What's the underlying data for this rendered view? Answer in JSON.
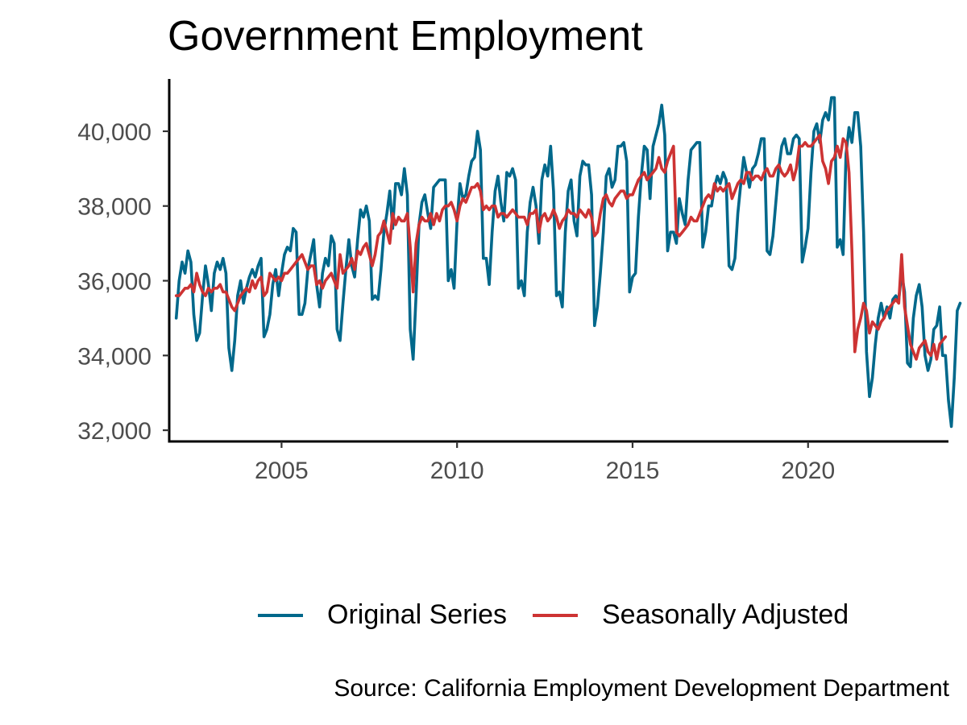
{
  "chart_data": {
    "type": "line",
    "title": "Government Employment",
    "xlabel": "",
    "ylabel": "",
    "caption": "Source: California Employment Development Department",
    "xlim": [
      2001.8,
      2024.0
    ],
    "ylim": [
      31700,
      41400
    ],
    "x_ticks": [
      2005,
      2010,
      2015,
      2020
    ],
    "x_tick_labels": [
      "2005",
      "2010",
      "2015",
      "2020"
    ],
    "y_ticks": [
      32000,
      34000,
      36000,
      38000,
      40000
    ],
    "y_tick_labels": [
      "32,000",
      "34,000",
      "36,000",
      "38,000",
      "40,000"
    ],
    "grid": false,
    "legend_position": "bottom",
    "x_start": 2002.0,
    "x_step": 0.08333,
    "series": [
      {
        "name": "Original Series",
        "color": "#00688b",
        "values": [
          35000,
          36000,
          36500,
          36200,
          36800,
          36500,
          35100,
          34400,
          34600,
          35600,
          36400,
          35900,
          35200,
          36200,
          36500,
          36300,
          36600,
          36200,
          34200,
          33600,
          34400,
          35600,
          36000,
          35400,
          35800,
          36100,
          36300,
          36100,
          36400,
          36600,
          34500,
          34700,
          35100,
          35900,
          36300,
          35600,
          36200,
          36700,
          36900,
          36800,
          37400,
          37300,
          35100,
          35100,
          35400,
          36300,
          36700,
          37100,
          35900,
          35300,
          36200,
          36600,
          36400,
          37200,
          37000,
          34700,
          34400,
          35400,
          36300,
          37100,
          36400,
          36100,
          37100,
          37900,
          37700,
          38000,
          37600,
          35500,
          35600,
          35500,
          36300,
          37300,
          37800,
          38400,
          37400,
          38600,
          38600,
          38300,
          39000,
          38300,
          34700,
          33900,
          35600,
          37500,
          38100,
          38300,
          37800,
          37400,
          38500,
          38600,
          38700,
          38700,
          38700,
          36000,
          36300,
          35800,
          37600,
          38600,
          38200,
          38300,
          38800,
          39200,
          39300,
          40000,
          39500,
          36600,
          36600,
          35900,
          37300,
          38400,
          38800,
          38100,
          37600,
          38900,
          38800,
          39000,
          38700,
          35800,
          36000,
          35600,
          37300,
          38100,
          38500,
          38000,
          37000,
          38700,
          39100,
          38800,
          39600,
          38400,
          35600,
          35700,
          35300,
          37300,
          38400,
          38700,
          37600,
          37200,
          38800,
          39200,
          39100,
          39100,
          38300,
          34800,
          35300,
          36200,
          37300,
          38800,
          39000,
          38500,
          38700,
          39600,
          39600,
          39700,
          39200,
          35700,
          36100,
          36200,
          37700,
          38800,
          39600,
          39500,
          38200,
          39600,
          39900,
          40200,
          40700,
          39900,
          36800,
          37300,
          37300,
          37000,
          38200,
          37800,
          37500,
          38700,
          39500,
          39600,
          39700,
          39700,
          36900,
          37300,
          38000,
          38000,
          38500,
          38800,
          38600,
          38900,
          38700,
          36400,
          36300,
          36600,
          37800,
          38600,
          39300,
          38900,
          38500,
          39000,
          39100,
          39400,
          39800,
          39800,
          36800,
          36700,
          37200,
          38100,
          39000,
          39600,
          39800,
          39400,
          39400,
          39800,
          39900,
          39800,
          36500,
          36900,
          37400,
          38900,
          40000,
          40200,
          39700,
          40300,
          40500,
          40300,
          40900,
          40900,
          36900,
          37100,
          36700,
          39400,
          40100,
          39700,
          40500,
          40500,
          39600,
          37300,
          34100,
          32900,
          33400,
          34300,
          35000,
          35400,
          35000,
          35300,
          35000,
          35500,
          35600,
          35500,
          36200,
          35700,
          33800,
          33700,
          35000,
          35600,
          35900,
          35300,
          34000,
          33600,
          33900,
          34700,
          34800,
          35300,
          34000,
          34000,
          32800,
          32100,
          33400,
          35200,
          35400
        ]
      },
      {
        "name": "Seasonally Adjusted",
        "color": "#cd3333",
        "values": [
          35600,
          35600,
          35700,
          35800,
          35800,
          35900,
          35700,
          36200,
          35900,
          35700,
          35600,
          35800,
          35700,
          35800,
          35800,
          35900,
          35700,
          35700,
          35500,
          35300,
          35200,
          35400,
          35600,
          35700,
          35800,
          35700,
          36000,
          35800,
          36000,
          36100,
          35600,
          35700,
          36200,
          36100,
          36000,
          36100,
          36000,
          36200,
          36200,
          36300,
          36400,
          36500,
          36600,
          36700,
          36500,
          36300,
          36400,
          36400,
          35900,
          36000,
          35800,
          36000,
          36100,
          36200,
          36000,
          35800,
          36700,
          36200,
          36300,
          36400,
          36600,
          36300,
          36800,
          36700,
          36900,
          37000,
          36700,
          36400,
          36700,
          37200,
          37300,
          37600,
          37300,
          37000,
          37800,
          37500,
          37700,
          37600,
          37600,
          37800,
          36900,
          35700,
          37000,
          37500,
          37700,
          37600,
          37600,
          37800,
          37500,
          37800,
          37600,
          37900,
          38000,
          38000,
          38100,
          37900,
          37600,
          38000,
          38200,
          38100,
          38300,
          38500,
          38500,
          38600,
          38400,
          37900,
          38000,
          37900,
          38000,
          38000,
          37700,
          37800,
          37800,
          37700,
          37800,
          37900,
          37800,
          37700,
          37700,
          37700,
          37500,
          37800,
          37800,
          37900,
          37300,
          37700,
          37800,
          37600,
          37700,
          37900,
          37700,
          37400,
          37600,
          37700,
          37900,
          37800,
          37800,
          37700,
          37900,
          37800,
          37700,
          37900,
          37700,
          37200,
          37300,
          37800,
          38200,
          38300,
          38100,
          38000,
          38200,
          38300,
          38400,
          38400,
          38200,
          38300,
          38300,
          38500,
          38700,
          38800,
          38900,
          38700,
          38800,
          38900,
          39000,
          39300,
          39000,
          38900,
          39200,
          39400,
          39600,
          37300,
          37200,
          37300,
          37400,
          37500,
          37700,
          37600,
          37600,
          37800,
          38000,
          38200,
          38300,
          38200,
          38600,
          38400,
          38500,
          38400,
          38500,
          38600,
          38200,
          38400,
          38600,
          38700,
          38600,
          38900,
          38900,
          38700,
          38800,
          38800,
          38700,
          38900,
          39000,
          38800,
          38800,
          39000,
          39100,
          38900,
          38800,
          38900,
          39100,
          38700,
          39000,
          39600,
          39600,
          39700,
          39600,
          39600,
          39700,
          39800,
          39900,
          39200,
          39000,
          38600,
          39200,
          39300,
          39600,
          39300,
          39800,
          39700,
          38900,
          36800,
          34100,
          34700,
          35000,
          35400,
          35200,
          34600,
          34900,
          34800,
          34700,
          34900,
          35000,
          35200,
          35300,
          35400,
          35500,
          35400,
          36700,
          35300,
          34800,
          34300,
          34100,
          33900,
          34200,
          34300,
          34400,
          34100,
          34000,
          34300,
          33900,
          34300,
          34400,
          34500
        ]
      }
    ]
  }
}
